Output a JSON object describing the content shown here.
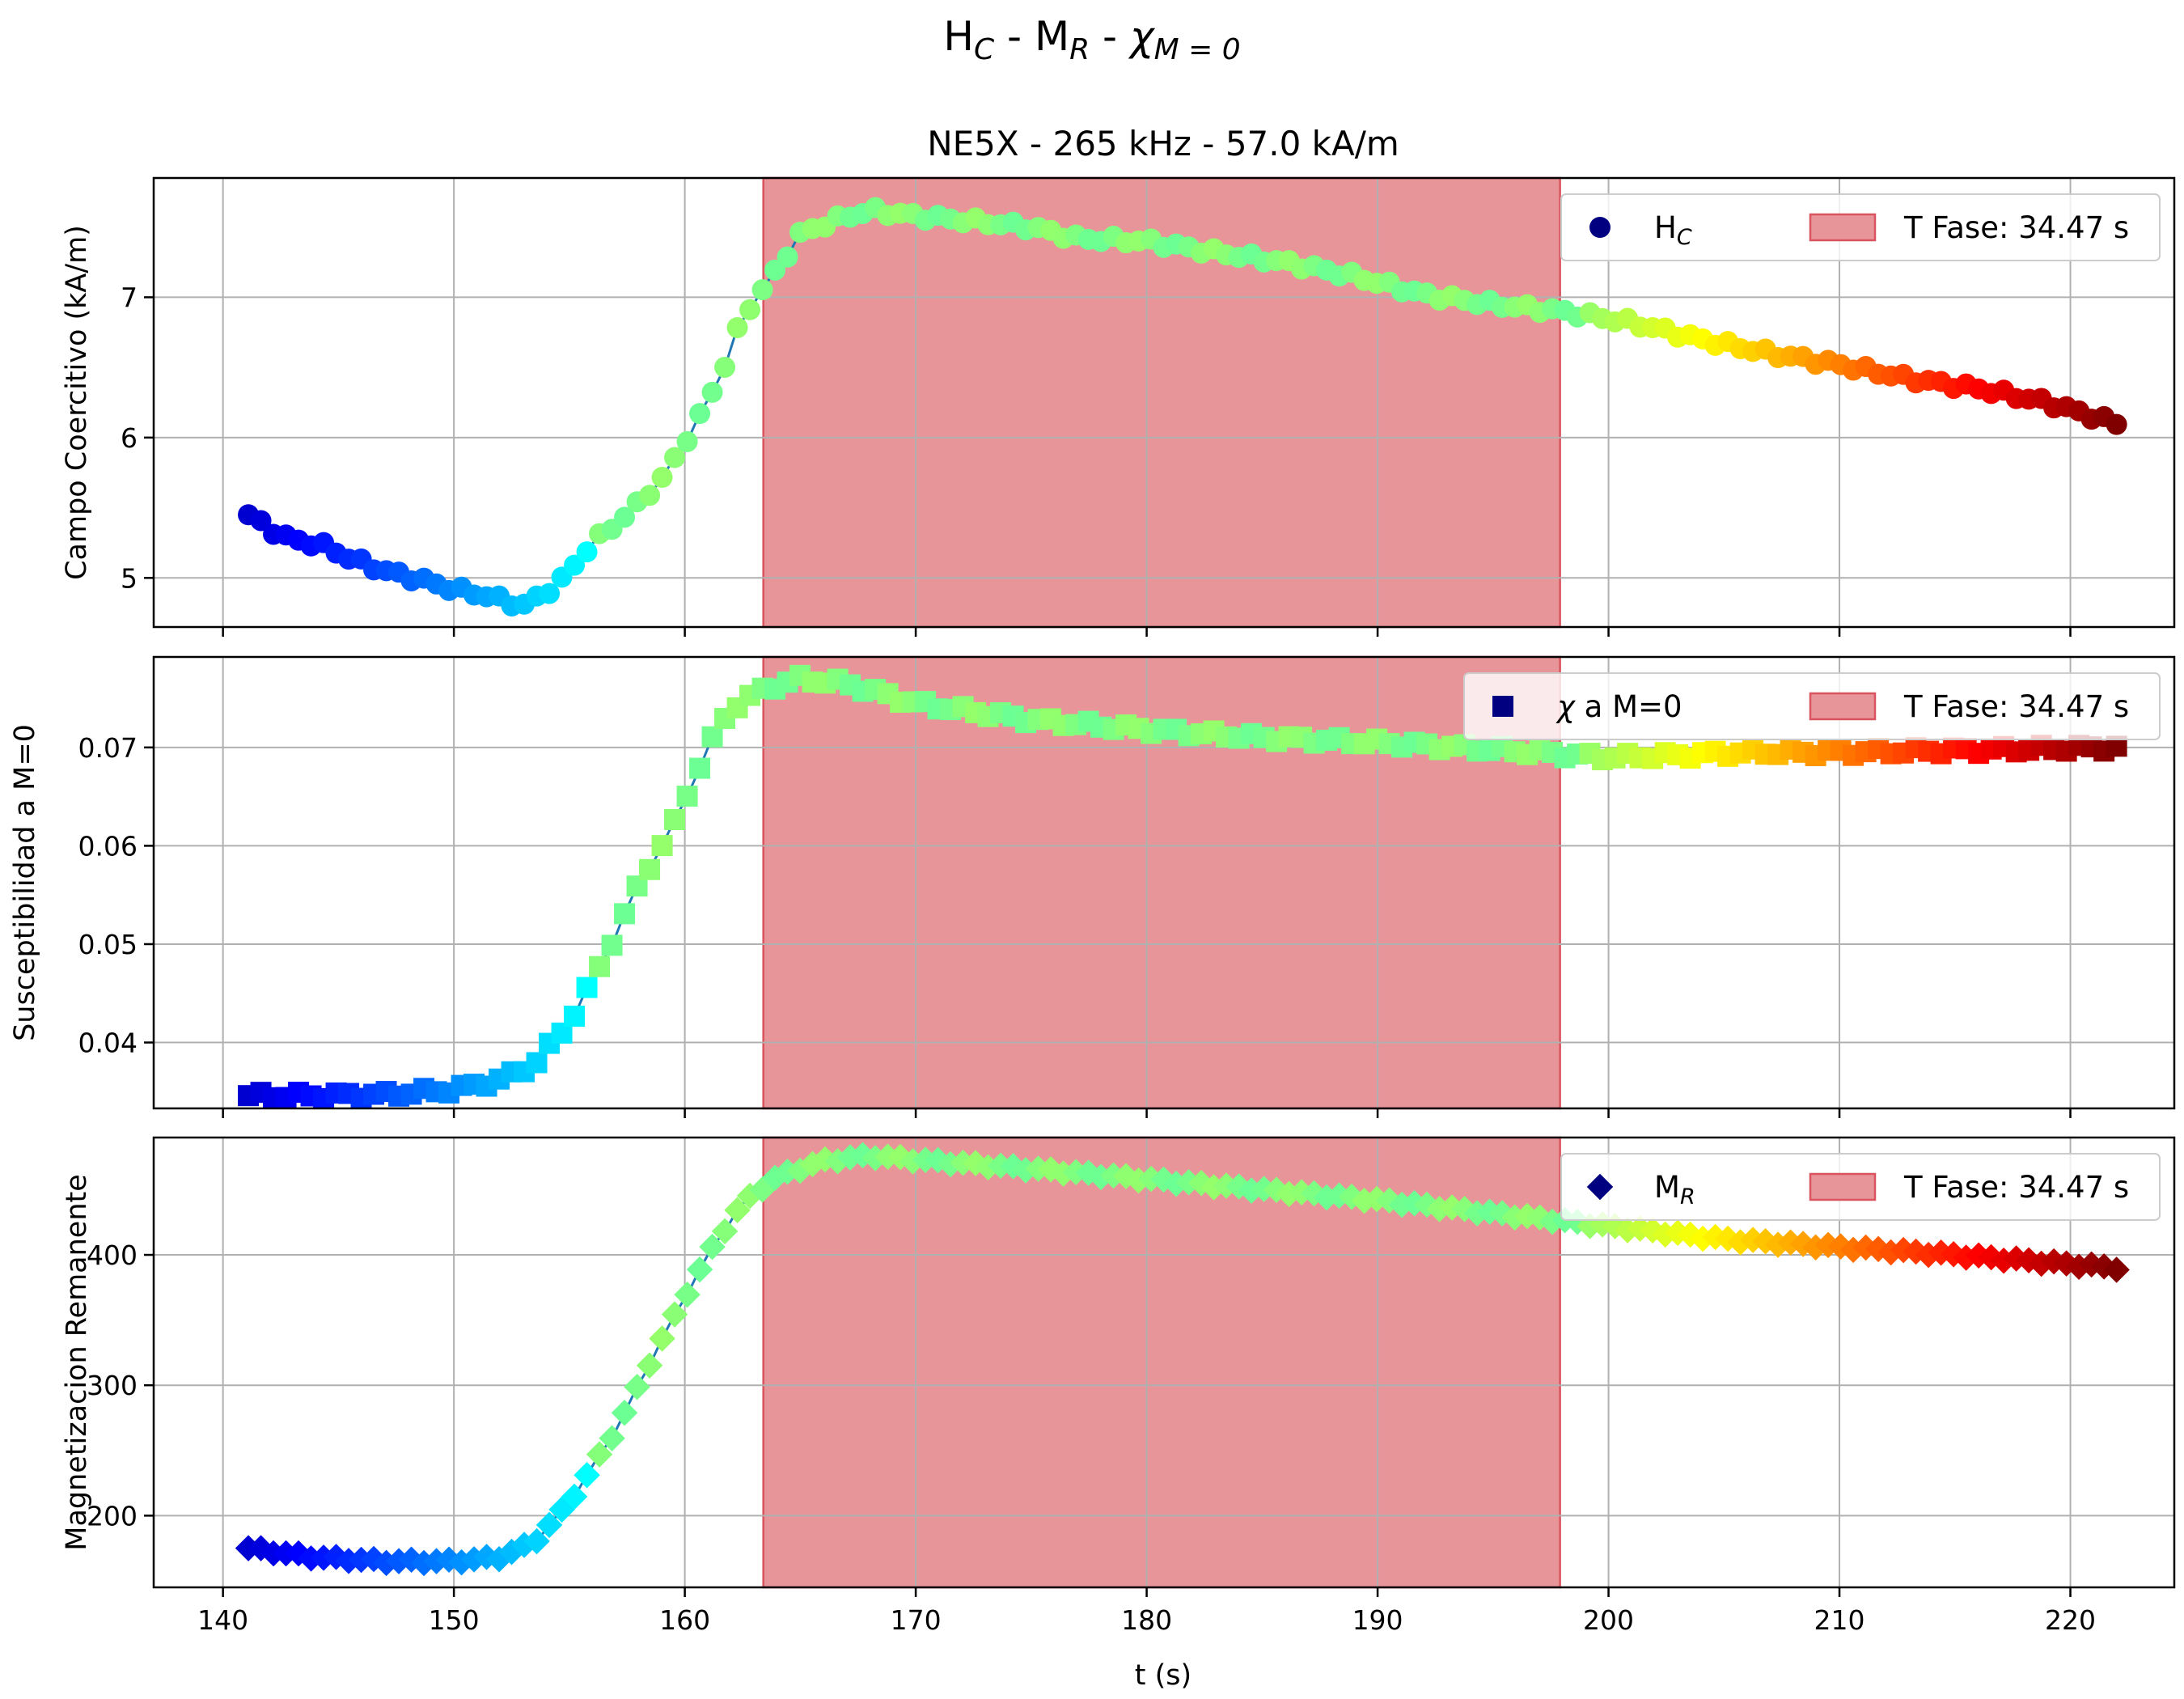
{
  "figure": {
    "title_main": "H",
    "title_sub_c": "C",
    "title_sep1": " - M",
    "title_sub_r": "R",
    "title_sep2": " - ",
    "title_chi": "χ",
    "title_sub_m0": "M = 0",
    "subtitle": "NE5X - 265 kHz - 57.0 kA/m"
  },
  "colors": {
    "phase_fill": "#e8959a",
    "phase_edge": "#d9545e",
    "line": "#1f77b4",
    "grid": "#b0b0b0",
    "legend_marker": "#000080"
  },
  "chart_data": [
    {
      "type": "scatter",
      "panel": "top",
      "marker": "circle",
      "ylabel": "Campo Coercitivo (kA/m)",
      "xlim": [
        137,
        224.5
      ],
      "ylim": [
        4.65,
        7.85
      ],
      "xticks": [
        140,
        150,
        160,
        170,
        180,
        190,
        200,
        210,
        220
      ],
      "yticks": [
        5,
        6,
        7
      ],
      "grid": true,
      "legend_position": "top-right",
      "legend": [
        {
          "label_main": "H",
          "label_sub": "C"
        },
        {
          "label": "T Fase: 34.47 s"
        }
      ],
      "phase_span": [
        163.4,
        197.9
      ],
      "anchors": [
        [
          141.1,
          5.45
        ],
        [
          142,
          5.35
        ],
        [
          143,
          5.27
        ],
        [
          144.2,
          5.24
        ],
        [
          145.5,
          5.14
        ],
        [
          147,
          5.05
        ],
        [
          148.5,
          4.99
        ],
        [
          150,
          4.92
        ],
        [
          151.5,
          4.87
        ],
        [
          153,
          4.8
        ],
        [
          154.5,
          4.95
        ],
        [
          156,
          5.25
        ],
        [
          157.5,
          5.45
        ],
        [
          159,
          5.7
        ],
        [
          160.5,
          6.1
        ],
        [
          161.7,
          6.5
        ],
        [
          162.5,
          6.86
        ],
        [
          163.8,
          7.15
        ],
        [
          165,
          7.45
        ],
        [
          166.5,
          7.55
        ],
        [
          168,
          7.62
        ],
        [
          170,
          7.58
        ],
        [
          172,
          7.55
        ],
        [
          175,
          7.5
        ],
        [
          177,
          7.42
        ],
        [
          180,
          7.4
        ],
        [
          183,
          7.32
        ],
        [
          186,
          7.25
        ],
        [
          189,
          7.15
        ],
        [
          192,
          7.02
        ],
        [
          195,
          6.95
        ],
        [
          198,
          6.9
        ],
        [
          201,
          6.82
        ],
        [
          204,
          6.7
        ],
        [
          207,
          6.6
        ],
        [
          210,
          6.52
        ],
        [
          213,
          6.42
        ],
        [
          216,
          6.35
        ],
        [
          219,
          6.25
        ],
        [
          222,
          6.1
        ]
      ]
    },
    {
      "type": "scatter",
      "panel": "middle",
      "marker": "square",
      "ylabel": "Susceptibilidad a M=0",
      "xlim": [
        137,
        224.5
      ],
      "ylim": [
        0.0333,
        0.0792
      ],
      "xticks": [
        140,
        150,
        160,
        170,
        180,
        190,
        200,
        210,
        220
      ],
      "yticks": [
        0.04,
        0.05,
        0.06,
        0.07
      ],
      "grid": true,
      "legend_position": "top-right",
      "legend": [
        {
          "label_chi": "χ",
          "label": " a M=0"
        },
        {
          "label": "T Fase: 34.47 s"
        }
      ],
      "phase_span": [
        163.4,
        197.9
      ],
      "anchors": [
        [
          141.1,
          0.0346
        ],
        [
          144,
          0.0346
        ],
        [
          147,
          0.0347
        ],
        [
          150,
          0.0352
        ],
        [
          152,
          0.0362
        ],
        [
          153.5,
          0.0378
        ],
        [
          155,
          0.042
        ],
        [
          156.5,
          0.0485
        ],
        [
          158,
          0.056
        ],
        [
          159.5,
          0.062
        ],
        [
          161,
          0.07
        ],
        [
          162,
          0.074
        ],
        [
          163.5,
          0.076
        ],
        [
          165,
          0.077
        ],
        [
          167,
          0.0765
        ],
        [
          170,
          0.0745
        ],
        [
          175,
          0.0728
        ],
        [
          180,
          0.0718
        ],
        [
          185,
          0.071
        ],
        [
          190,
          0.0705
        ],
        [
          195,
          0.0698
        ],
        [
          200,
          0.069
        ],
        [
          203,
          0.0692
        ],
        [
          206,
          0.0695
        ],
        [
          210,
          0.0695
        ],
        [
          215,
          0.0697
        ],
        [
          222,
          0.07
        ]
      ]
    },
    {
      "type": "scatter",
      "panel": "bottom",
      "marker": "diamond",
      "ylabel": "Magnetizacion Remanente",
      "xlabel": "t (s)",
      "xlim": [
        137,
        224.5
      ],
      "ylim": [
        145,
        490
      ],
      "xticks": [
        140,
        150,
        160,
        170,
        180,
        190,
        200,
        210,
        220
      ],
      "yticks": [
        200,
        300,
        400
      ],
      "grid": true,
      "legend_position": "top-right",
      "legend": [
        {
          "label_main": "M",
          "label_sub": "R"
        },
        {
          "label": "T Fase: 34.47 s"
        }
      ],
      "phase_span": [
        163.4,
        197.9
      ],
      "anchors": [
        [
          141.1,
          175
        ],
        [
          144,
          168
        ],
        [
          147,
          165
        ],
        [
          150,
          165
        ],
        [
          152,
          168
        ],
        [
          153.5,
          180
        ],
        [
          155,
          210
        ],
        [
          157,
          265
        ],
        [
          159,
          335
        ],
        [
          161,
          400
        ],
        [
          162.5,
          440
        ],
        [
          164,
          460
        ],
        [
          166,
          472
        ],
        [
          168,
          476
        ],
        [
          170,
          473
        ],
        [
          175,
          466
        ],
        [
          180,
          458
        ],
        [
          185,
          450
        ],
        [
          190,
          442
        ],
        [
          195,
          432
        ],
        [
          200,
          422
        ],
        [
          205,
          412
        ],
        [
          210,
          406
        ],
        [
          215,
          400
        ],
        [
          222,
          390
        ]
      ]
    }
  ]
}
